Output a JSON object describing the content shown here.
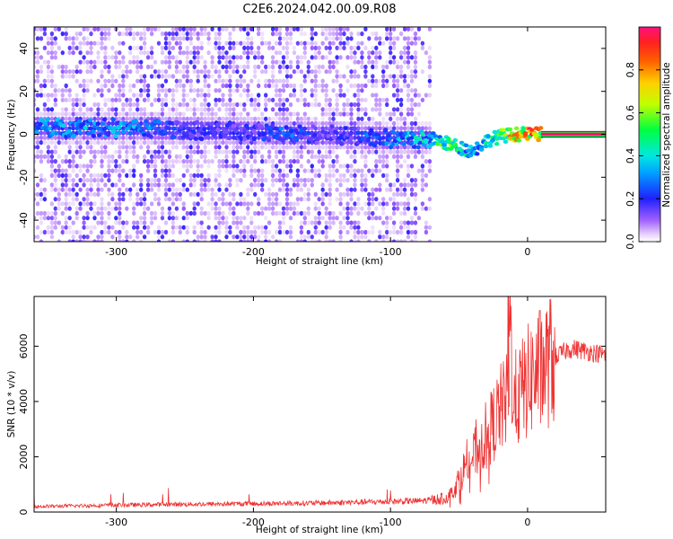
{
  "title": "C2E6.2024.042.00.09.R08",
  "chart_data": [
    {
      "type": "heatmap",
      "xlabel": "Height of straight line (km)",
      "ylabel": "Frequency (Hz)",
      "xlim": [
        -360,
        57
      ],
      "ylim": [
        -50,
        50
      ],
      "xticks": [
        -300,
        -200,
        -100,
        0
      ],
      "yticks": [
        -40,
        -20,
        0,
        20,
        40
      ],
      "colorbar": {
        "label": "Normalized spectral amplitude",
        "range": [
          0,
          1
        ],
        "ticks": [
          0.0,
          0.2,
          0.4,
          0.6,
          0.8
        ],
        "tick_labels": [
          "0.0",
          "0.2",
          "0.4",
          "0.6",
          "0.8"
        ]
      },
      "features": {
        "noise_region_x": [
          -360,
          -70
        ],
        "empty_region_x": [
          -70,
          57
        ],
        "main_track": [
          {
            "x": -285,
            "y": 3,
            "v": 0.35
          },
          {
            "x": -250,
            "y": 2,
            "v": 0.2
          },
          {
            "x": -200,
            "y": 1,
            "v": 0.2
          },
          {
            "x": -175,
            "y": 0,
            "v": 0.3
          },
          {
            "x": -150,
            "y": 0,
            "v": 0.15
          },
          {
            "x": -100,
            "y": -2,
            "v": 0.35
          },
          {
            "x": -70,
            "y": -2,
            "v": 0.45
          },
          {
            "x": -55,
            "y": -5,
            "v": 0.65
          },
          {
            "x": -40,
            "y": -8,
            "v": 0.4
          },
          {
            "x": -30,
            "y": -3,
            "v": 0.45
          },
          {
            "x": -20,
            "y": -1,
            "v": 0.6
          },
          {
            "x": -10,
            "y": 0,
            "v": 0.85
          },
          {
            "x": 0,
            "y": 0,
            "v": 0.9
          },
          {
            "x": 10,
            "y": 0,
            "v": 0.95
          },
          {
            "x": 57,
            "y": 0,
            "v": 0.97
          }
        ]
      }
    },
    {
      "type": "line",
      "xlabel": "Height of straight line (km)",
      "ylabel": "SNR (10 * v/v)",
      "xlim": [
        -360,
        57
      ],
      "ylim": [
        0,
        7800
      ],
      "xticks": [
        -300,
        -200,
        -100,
        0
      ],
      "yticks": [
        0,
        2000,
        4000,
        6000
      ],
      "series": [
        {
          "color": "#ee3333",
          "x": [
            -360,
            -300,
            -250,
            -200,
            -150,
            -100,
            -80,
            -70,
            -60,
            -55,
            -50,
            -45,
            -40,
            -35,
            -30,
            -25,
            -20,
            -15,
            -14,
            -10,
            -5,
            0,
            5,
            10,
            15,
            20,
            25,
            30,
            35,
            40,
            45,
            50,
            57
          ],
          "y": [
            200,
            250,
            280,
            300,
            330,
            380,
            400,
            430,
            500,
            700,
            1200,
            1700,
            2000,
            2400,
            2800,
            3200,
            3700,
            4000,
            7800,
            4000,
            4300,
            4700,
            5000,
            5200,
            5400,
            5600,
            5750,
            5900,
            5900,
            5850,
            5800,
            5750,
            5700
          ]
        }
      ]
    }
  ]
}
